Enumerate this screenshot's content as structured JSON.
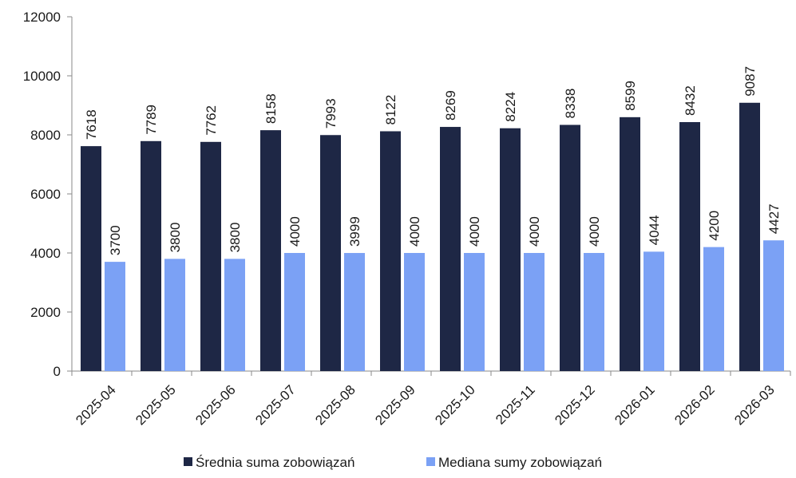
{
  "chart_data": {
    "type": "bar",
    "categories": [
      "2025-04",
      "2025-05",
      "2025-06",
      "2025-07",
      "2025-08",
      "2025-09",
      "2025-10",
      "2025-11",
      "2025-12",
      "2026-01",
      "2026-02",
      "2026-03"
    ],
    "series": [
      {
        "name": "Średnia suma zobowiązań",
        "color": "#1e2745",
        "values": [
          7618,
          7789,
          7762,
          8158,
          7993,
          8122,
          8269,
          8224,
          8338,
          8599,
          8432,
          9087
        ]
      },
      {
        "name": "Mediana sumy zobowiązań",
        "color": "#7ba1f5",
        "values": [
          3700,
          3800,
          3800,
          4000,
          3999,
          4000,
          4000,
          4000,
          4000,
          4044,
          4200,
          4427
        ]
      }
    ],
    "ylim": [
      0,
      12000
    ],
    "yticks": [
      0,
      2000,
      4000,
      6000,
      8000,
      10000,
      12000
    ],
    "grid": false,
    "data_labels": true,
    "legend_position": "bottom-center"
  }
}
